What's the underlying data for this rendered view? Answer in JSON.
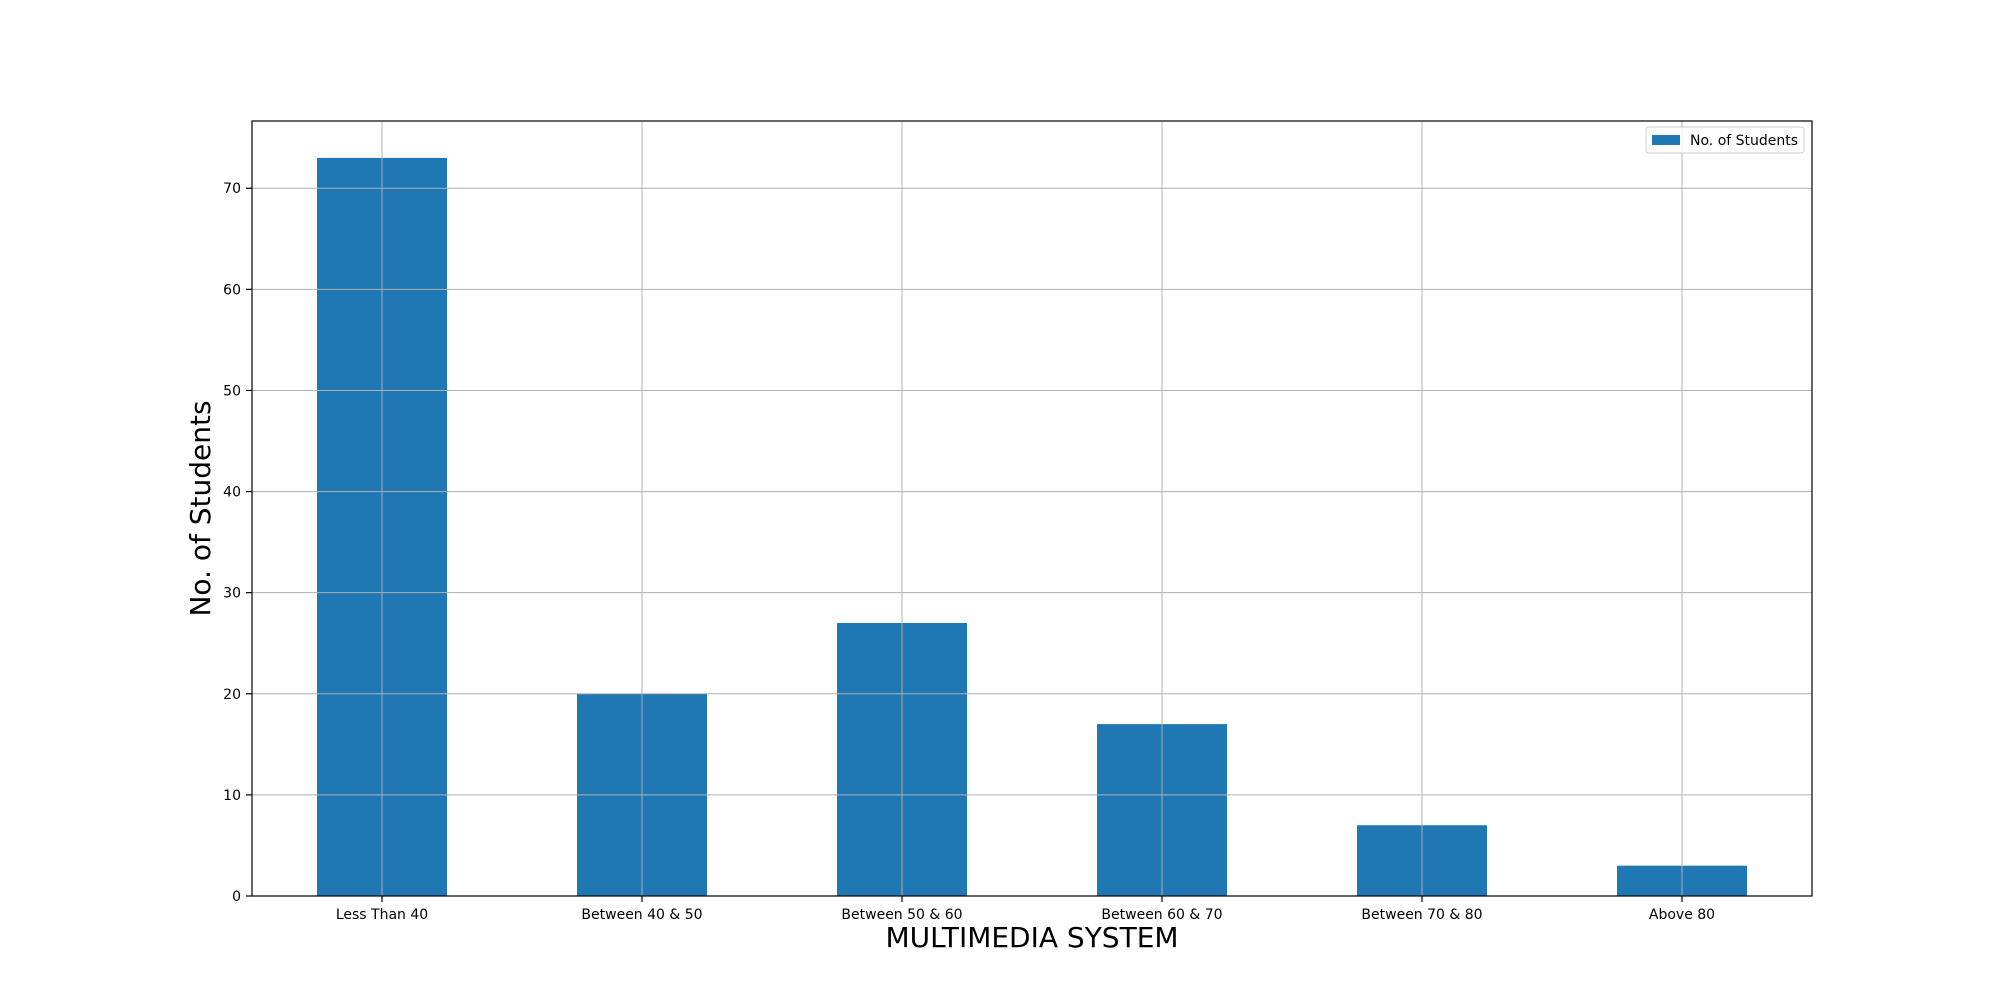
{
  "chart_data": {
    "type": "bar",
    "title": "",
    "xlabel": "MULTIMEDIA SYSTEM",
    "ylabel": "No. of Students",
    "categories": [
      "Less Than 40",
      "Between 40 & 50",
      "Between 50 & 60",
      "Between 60 & 70",
      "Between 70 & 80",
      "Above 80"
    ],
    "series": [
      {
        "name": "No. of Students",
        "values": [
          73,
          20,
          27,
          17,
          7,
          3
        ],
        "color": "#1f77b4"
      }
    ],
    "ylim": [
      0,
      76.65
    ],
    "yticks": [
      0,
      10,
      20,
      30,
      40,
      50,
      60,
      70
    ],
    "grid": true,
    "legend_position": "top-right"
  }
}
